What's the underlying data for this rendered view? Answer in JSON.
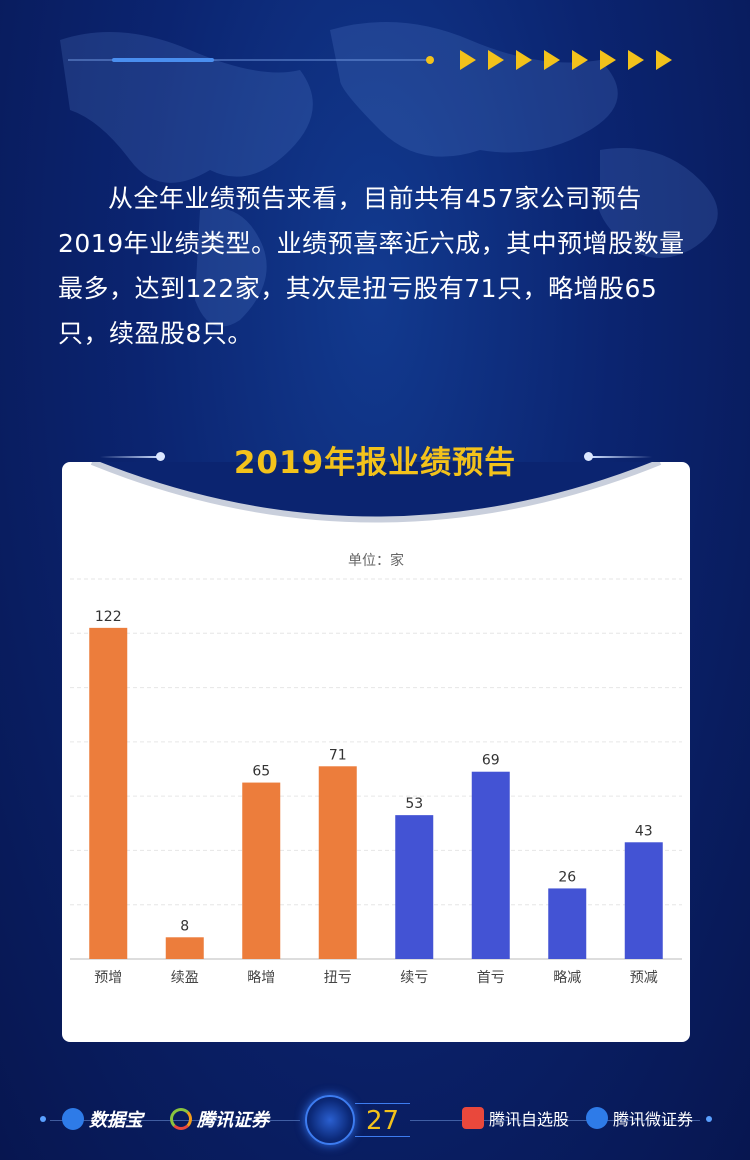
{
  "intro_text": "从全年业绩预告来看，目前共有457家公司预告2019年业绩类型。业绩预喜率近六成，其中预增股数量最多，达到122家，其次是扭亏股有71只，略增股65只，续盈股8只。",
  "chart_title": "2019年报业绩预告",
  "unit_label": "单位：家",
  "colors": {
    "positive": "#ec7d3c",
    "negative": "#4353d4",
    "accent": "#f3c21b"
  },
  "chart_data": {
    "type": "bar",
    "title": "2019年报业绩预告",
    "ylabel": "单位：家",
    "categories": [
      "预增",
      "续盈",
      "略增",
      "扭亏",
      "续亏",
      "首亏",
      "略减",
      "预减"
    ],
    "values": [
      122,
      8,
      65,
      71,
      53,
      69,
      26,
      43
    ],
    "bar_colors": [
      "#ec7d3c",
      "#ec7d3c",
      "#ec7d3c",
      "#ec7d3c",
      "#4353d4",
      "#4353d4",
      "#4353d4",
      "#4353d4"
    ],
    "ylim": [
      0,
      140
    ],
    "grid": true
  },
  "footer": {
    "logo1": "数据宝",
    "logo2": "腾讯证券",
    "page": "27",
    "logo3": "腾讯自选股",
    "logo4": "腾讯微证券"
  }
}
